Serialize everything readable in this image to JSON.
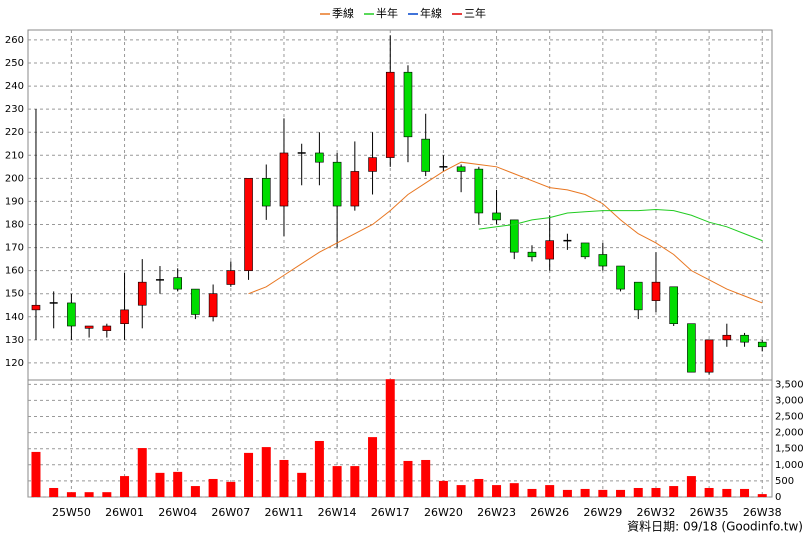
{
  "chart_data": [
    {
      "type": "candlestick",
      "categories": [
        null,
        null,
        "25W50",
        null,
        null,
        "26W01",
        null,
        null,
        "26W04",
        null,
        null,
        "26W07",
        null,
        null,
        "26W11",
        null,
        null,
        "26W14",
        null,
        null,
        "26W17",
        null,
        null,
        "26W20",
        null,
        null,
        "26W23",
        null,
        null,
        "26W26",
        null,
        null,
        "26W29",
        null,
        null,
        "26W32",
        null,
        null,
        "26W35",
        null,
        null,
        "26W38"
      ],
      "open": [
        143,
        146,
        146,
        135,
        134,
        137,
        145,
        156,
        157,
        152,
        140,
        154,
        160,
        200,
        188,
        211,
        211,
        207,
        188,
        203,
        209,
        246,
        217,
        205,
        205,
        204,
        185,
        182,
        168,
        165,
        173,
        172,
        167,
        162,
        155,
        147,
        153,
        137,
        116,
        130,
        132,
        129
      ],
      "high": [
        230,
        151,
        150,
        136,
        137,
        159,
        165,
        162,
        161,
        152,
        154,
        164,
        200,
        206,
        226,
        215,
        220,
        211,
        216,
        220,
        262,
        249,
        228,
        210,
        206,
        205,
        195,
        182,
        171,
        184,
        176,
        172,
        172,
        162,
        155,
        168,
        153,
        137,
        130,
        137,
        133,
        130
      ],
      "low": [
        130,
        135,
        130,
        131,
        131,
        130,
        135,
        150,
        151,
        139,
        138,
        153,
        156,
        182,
        175,
        197,
        197,
        170,
        186,
        193,
        205,
        207,
        201,
        203,
        194,
        180,
        180,
        165,
        164,
        160,
        169,
        165,
        160,
        151,
        139,
        142,
        136,
        116,
        115,
        127,
        127,
        125
      ],
      "close": [
        145,
        146,
        136,
        136,
        136,
        143,
        155,
        156,
        152,
        141,
        150,
        160,
        200,
        188,
        211,
        211,
        207,
        188,
        203,
        209,
        246,
        218,
        203,
        205,
        203,
        185,
        182,
        168,
        166,
        173,
        173,
        166,
        162,
        152,
        143,
        155,
        137,
        116,
        130,
        132,
        129,
        127
      ],
      "up_color": "#ff0000",
      "down_color": "#00dd00",
      "flat_color": "#000000",
      "ylim": [
        112.6,
        264.3
      ],
      "yticks": [
        120,
        130,
        140,
        150,
        160,
        170,
        180,
        190,
        200,
        210,
        220,
        230,
        240,
        250,
        260
      ],
      "grid": true,
      "legend": "top",
      "series": [
        {
          "name": "季線",
          "color": "#e87722",
          "values": [
            null,
            null,
            null,
            null,
            null,
            null,
            null,
            null,
            null,
            null,
            null,
            null,
            150,
            153,
            158,
            163,
            168,
            172,
            176,
            180,
            186,
            193,
            198,
            203,
            207,
            206,
            205,
            202,
            199,
            196,
            195,
            193,
            189,
            182,
            176,
            172,
            167,
            160,
            156,
            152,
            149,
            146
          ]
        },
        {
          "name": "半年",
          "color": "#22cc22",
          "values": [
            null,
            null,
            null,
            null,
            null,
            null,
            null,
            null,
            null,
            null,
            null,
            null,
            null,
            null,
            null,
            null,
            null,
            null,
            null,
            null,
            null,
            null,
            null,
            null,
            null,
            178,
            179,
            180,
            182,
            183,
            185,
            185.5,
            186,
            186,
            186,
            186.5,
            186,
            184,
            181,
            179,
            176,
            173
          ]
        },
        {
          "name": "年線",
          "color": "#0044cc",
          "values": [
            null,
            null,
            null,
            null,
            null,
            null,
            null,
            null,
            null,
            null,
            null,
            null,
            null,
            null,
            null,
            null,
            null,
            null,
            null,
            null,
            null,
            null,
            null,
            null,
            null,
            null,
            null,
            null,
            null,
            null,
            null,
            null,
            null,
            null,
            null,
            null,
            null,
            null,
            null,
            null,
            null,
            null
          ]
        },
        {
          "name": "三年",
          "color": "#dd0000",
          "values": [
            null,
            null,
            null,
            null,
            null,
            null,
            null,
            null,
            null,
            null,
            null,
            null,
            null,
            null,
            null,
            null,
            null,
            null,
            null,
            null,
            null,
            null,
            null,
            null,
            null,
            null,
            null,
            null,
            null,
            null,
            null,
            null,
            null,
            null,
            null,
            null,
            null,
            null,
            null,
            null,
            null,
            null
          ]
        }
      ]
    },
    {
      "type": "bar",
      "color": "#ff0000",
      "values": [
        1400,
        280,
        150,
        150,
        150,
        650,
        1520,
        750,
        780,
        340,
        560,
        470,
        1370,
        1550,
        1150,
        750,
        1740,
        960,
        960,
        1860,
        3660,
        1120,
        1150,
        500,
        370,
        560,
        370,
        430,
        250,
        370,
        220,
        250,
        220,
        220,
        280,
        280,
        340,
        650,
        280,
        250,
        250,
        90
      ],
      "ylim": [
        0,
        3634
      ],
      "yticks": [
        0,
        {
          "value": 500,
          "label": "500"
        },
        {
          "value": 1000,
          "label": "1,000"
        },
        {
          "value": 1500,
          "label": "1,500"
        },
        {
          "value": 2000,
          "label": "2,000"
        },
        {
          "value": 2500,
          "label": "2,500"
        },
        {
          "value": 3000,
          "label": "3,000"
        },
        {
          "value": 3500,
          "label": "3,500"
        }
      ],
      "grid": true
    }
  ],
  "source": "資料日期: 09/18 (Goodinfo.tw)"
}
